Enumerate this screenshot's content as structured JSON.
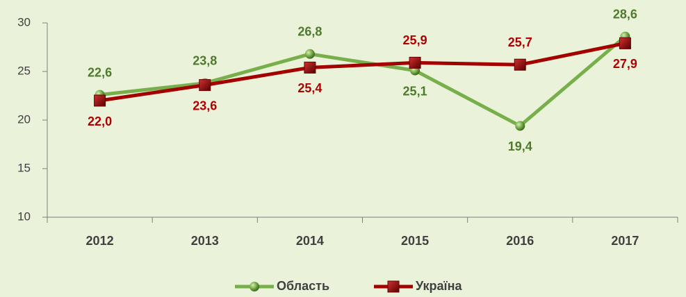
{
  "chart_data": {
    "type": "line",
    "categories": [
      "2012",
      "2013",
      "2014",
      "2015",
      "2016",
      "2017"
    ],
    "series": [
      {
        "name": "Область",
        "color": "#77b04a",
        "label_color": "#4e7a2c",
        "values": [
          22.6,
          23.8,
          26.8,
          25.1,
          19.4,
          28.6
        ],
        "value_labels": [
          "22,6",
          "23,8",
          "26,8",
          "25,1",
          "19,4",
          "28,6"
        ]
      },
      {
        "name": "Україна",
        "color": "#a30000",
        "label_color": "#b00000",
        "values": [
          22.0,
          23.6,
          25.4,
          25.9,
          25.7,
          27.9
        ],
        "value_labels": [
          "22,0",
          "23,6",
          "25,4",
          "25,9",
          "25,7",
          "27,9"
        ]
      }
    ],
    "ylim": [
      10,
      30
    ],
    "yticks": [
      10,
      15,
      20,
      25,
      30
    ],
    "legend": "bottom"
  }
}
